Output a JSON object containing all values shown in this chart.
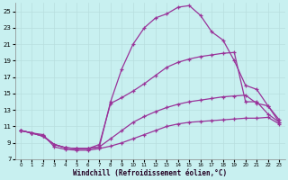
{
  "xlabel": "Windchill (Refroidissement éolien,°C)",
  "bg_color": "#c8f0f0",
  "grid_color": "#b8dede",
  "line_color": "#993399",
  "xlim": [
    -0.5,
    23.5
  ],
  "ylim": [
    7,
    26
  ],
  "xticks": [
    0,
    1,
    2,
    3,
    4,
    5,
    6,
    7,
    8,
    9,
    10,
    11,
    12,
    13,
    14,
    15,
    16,
    17,
    18,
    19,
    20,
    21,
    22,
    23
  ],
  "yticks": [
    7,
    9,
    11,
    13,
    15,
    17,
    19,
    21,
    23,
    25
  ],
  "curve1_x": [
    0,
    1,
    2,
    3,
    4,
    5,
    6,
    7,
    8,
    9,
    10,
    11,
    12,
    13,
    14,
    15,
    16,
    17,
    18,
    19,
    20,
    21,
    22,
    23
  ],
  "curve1_y": [
    10.5,
    10.2,
    10.0,
    8.5,
    8.2,
    8.1,
    8.1,
    8.3,
    8.6,
    9.0,
    9.5,
    10.0,
    10.5,
    11.0,
    11.3,
    11.5,
    11.6,
    11.7,
    11.8,
    11.9,
    12.0,
    12.0,
    12.1,
    11.3
  ],
  "curve2_x": [
    0,
    1,
    2,
    3,
    4,
    5,
    6,
    7,
    8,
    9,
    10,
    11,
    12,
    13,
    14,
    15,
    16,
    17,
    18,
    19,
    20,
    21,
    22,
    23
  ],
  "curve2_y": [
    10.5,
    10.2,
    9.8,
    8.8,
    8.4,
    8.3,
    8.3,
    8.5,
    9.5,
    10.5,
    11.5,
    12.2,
    12.8,
    13.3,
    13.7,
    14.0,
    14.2,
    14.4,
    14.6,
    14.7,
    14.8,
    13.8,
    13.5,
    11.8
  ],
  "curve3_x": [
    0,
    1,
    2,
    3,
    4,
    5,
    6,
    7,
    8,
    9,
    10,
    11,
    12,
    13,
    14,
    15,
    16,
    17,
    18,
    19,
    20,
    21,
    22,
    23
  ],
  "curve3_y": [
    10.5,
    10.2,
    9.8,
    8.8,
    8.4,
    8.3,
    8.3,
    8.8,
    13.8,
    14.5,
    15.3,
    16.2,
    17.2,
    18.2,
    18.8,
    19.2,
    19.5,
    19.7,
    19.9,
    20.0,
    14.0,
    14.0,
    12.5,
    11.5
  ],
  "curve4_x": [
    0,
    1,
    2,
    3,
    4,
    5,
    6,
    7,
    8,
    9,
    10,
    11,
    12,
    13,
    14,
    15,
    16,
    17,
    18,
    19,
    20,
    21,
    22,
    23
  ],
  "curve4_y": [
    10.5,
    10.2,
    9.8,
    8.8,
    8.4,
    8.3,
    8.3,
    8.5,
    14.0,
    18.0,
    21.0,
    23.0,
    24.2,
    24.7,
    25.5,
    25.7,
    24.5,
    22.5,
    21.5,
    19.0,
    16.0,
    15.5,
    13.5,
    11.5
  ]
}
